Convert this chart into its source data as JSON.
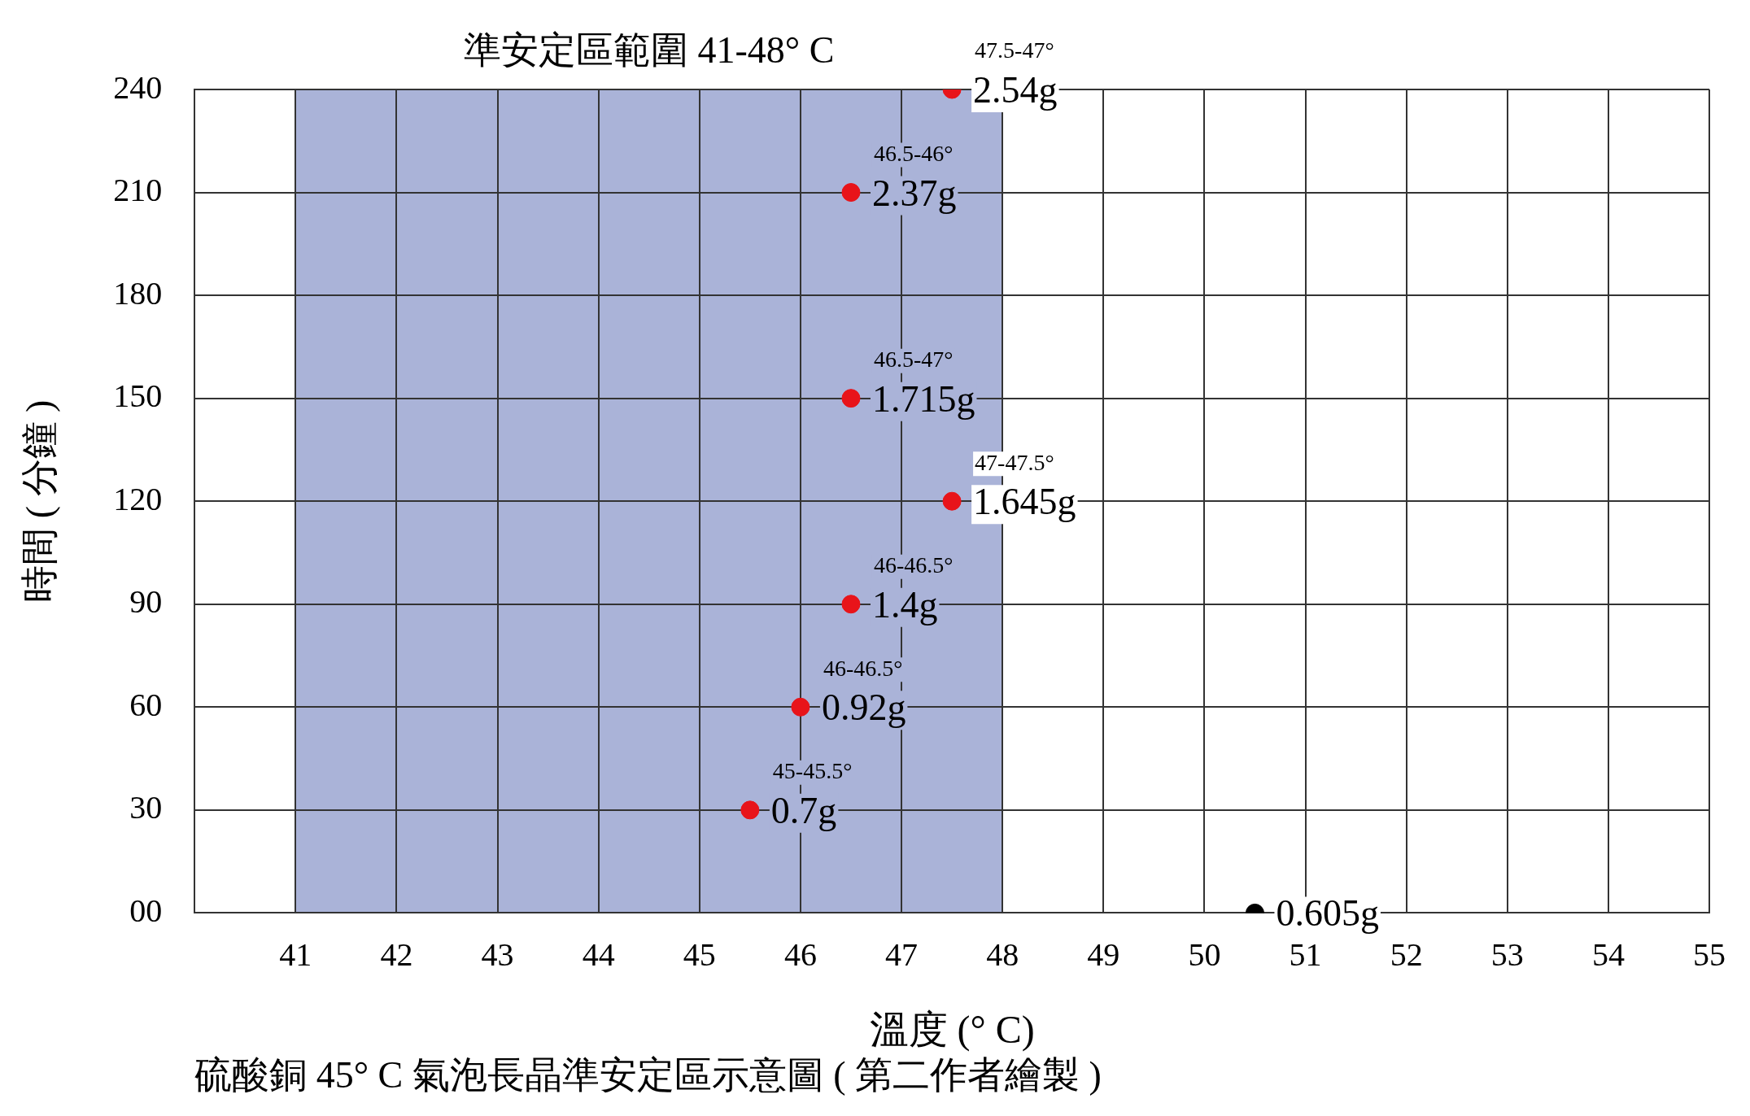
{
  "chart_data": {
    "type": "scatter",
    "xlabel": "溫度 (° C)",
    "ylabel": "時間 ( 分鐘 )",
    "xlim": [
      40,
      55
    ],
    "xticks": [
      41,
      42,
      43,
      44,
      45,
      46,
      47,
      48,
      49,
      50,
      51,
      52,
      53,
      54,
      55
    ],
    "ylim": [
      0,
      240
    ],
    "yticks": [
      {
        "value": 0,
        "label": "00"
      },
      30,
      60,
      90,
      120,
      150,
      180,
      210,
      240
    ],
    "grid": true,
    "legend": false,
    "marker": "circle",
    "bands": [
      {
        "axis": "x",
        "from": 41,
        "to": 48,
        "label": "準安定區範圍 41-48° C",
        "color": "#aab3d8"
      }
    ],
    "series": [
      {
        "color": "#e8141a",
        "x": [
          45.5,
          46,
          46.5,
          47.5,
          46.5,
          46.5,
          47.5
        ],
        "values": [
          30,
          60,
          90,
          120,
          150,
          210,
          240
        ]
      },
      {
        "color": "#000000",
        "x": [
          50.5
        ],
        "values": [
          0
        ]
      }
    ],
    "annotations": [
      {
        "text": "0.7g",
        "x": 45.5,
        "y": 30
      },
      {
        "text": "45-45.5°",
        "x": 45.5,
        "y": 30
      },
      {
        "text": "0.92g",
        "x": 46,
        "y": 60
      },
      {
        "text": "46-46.5°",
        "x": 46,
        "y": 60
      },
      {
        "text": "1.4g",
        "x": 46.5,
        "y": 90
      },
      {
        "text": "46-46.5°",
        "x": 46.5,
        "y": 90
      },
      {
        "text": "1.645g",
        "x": 47.5,
        "y": 120
      },
      {
        "text": "47-47.5°",
        "x": 47.5,
        "y": 120
      },
      {
        "text": "1.715g",
        "x": 46.5,
        "y": 150
      },
      {
        "text": "46.5-47°",
        "x": 46.5,
        "y": 150
      },
      {
        "text": "2.37g",
        "x": 46.5,
        "y": 210
      },
      {
        "text": "46.5-46°",
        "x": 46.5,
        "y": 210
      },
      {
        "text": "2.54g",
        "x": 47.5,
        "y": 240
      },
      {
        "text": "47.5-47°",
        "x": 47.5,
        "y": 240
      },
      {
        "text": "0.605g",
        "x": 50.5,
        "y": 0
      },
      "硫酸銅 45° C 氣泡長晶準安定區示意圖 ( 第二作者繪製 )"
    ]
  }
}
